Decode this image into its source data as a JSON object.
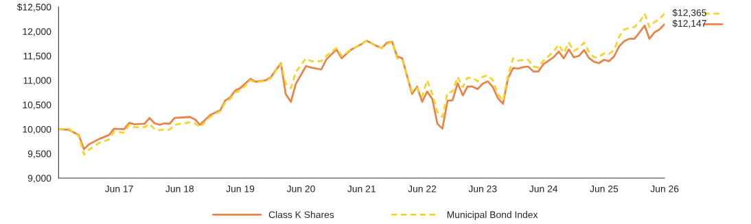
{
  "chart_data": {
    "type": "line",
    "x": [
      "2016-06",
      "2016-08",
      "2016-10",
      "2016-11",
      "2016-12",
      "2017-02",
      "2017-04",
      "2017-05",
      "2017-07",
      "2017-08",
      "2017-09",
      "2017-11",
      "2017-12",
      "2018-01",
      "2018-02",
      "2018-03",
      "2018-04",
      "2018-05",
      "2018-08",
      "2018-09",
      "2018-10",
      "2018-12",
      "2019-02",
      "2019-03",
      "2019-04",
      "2019-05",
      "2019-06",
      "2019-08",
      "2019-09",
      "2019-11",
      "2019-12",
      "2020-02",
      "2020-03",
      "2020-04",
      "2020-05",
      "2020-07",
      "2020-08",
      "2020-10",
      "2020-11",
      "2021-01",
      "2021-02",
      "2021-03",
      "2021-04",
      "2021-06",
      "2021-07",
      "2021-09",
      "2021-10",
      "2021-11",
      "2021-12",
      "2022-01",
      "2022-02",
      "2022-04",
      "2022-05",
      "2022-06",
      "2022-07",
      "2022-08",
      "2022-09",
      "2022-10",
      "2022-11",
      "2022-12",
      "2023-01",
      "2023-02",
      "2023-03",
      "2023-04",
      "2023-05",
      "2023-06",
      "2023-07",
      "2023-08",
      "2023-09",
      "2023-10",
      "2023-11",
      "2023-12",
      "2024-01",
      "2024-02",
      "2024-03",
      "2024-04",
      "2024-05",
      "2024-06",
      "2024-08",
      "2024-09",
      "2024-10",
      "2024-11",
      "2024-12",
      "2025-01",
      "2025-02",
      "2025-03",
      "2025-04",
      "2025-05",
      "2025-06",
      "2025-07",
      "2025-08",
      "2025-09",
      "2025-10",
      "2025-11",
      "2025-12",
      "2026-01",
      "2026-02",
      "2026-03",
      "2026-04",
      "2026-05",
      "2026-06"
    ],
    "series": [
      {
        "name": "Class K Shares",
        "color": "#e8834a",
        "line_style": "solid",
        "values": [
          10000,
          9990,
          9880,
          9590,
          9690,
          9800,
          9880,
          10010,
          10000,
          10130,
          10100,
          10110,
          10230,
          10120,
          10090,
          10120,
          10110,
          10230,
          10250,
          10200,
          10090,
          10290,
          10390,
          10580,
          10650,
          10790,
          10840,
          11030,
          10970,
          11000,
          11060,
          11350,
          10720,
          10560,
          10930,
          11290,
          11260,
          11220,
          11430,
          11630,
          11450,
          11540,
          11630,
          11740,
          11810,
          11700,
          11660,
          11770,
          11790,
          11490,
          11450,
          10720,
          10870,
          10560,
          10770,
          10620,
          10110,
          10010,
          10580,
          10590,
          10940,
          10690,
          10870,
          10870,
          10820,
          10930,
          10980,
          10860,
          10630,
          10520,
          11050,
          11250,
          11240,
          11270,
          11280,
          11180,
          11180,
          11330,
          11470,
          11590,
          11450,
          11630,
          11470,
          11500,
          11620,
          11460,
          11380,
          11350,
          11420,
          11390,
          11490,
          11700,
          11800,
          11850,
          11850,
          11980,
          12120,
          11850,
          11980,
          12040,
          12147
        ]
      },
      {
        "name": "Municipal Bond Index",
        "color": "#f5d327",
        "line_style": "dashed",
        "values": [
          10000,
          10010,
          9860,
          9480,
          9580,
          9720,
          9790,
          9950,
          9930,
          10090,
          10040,
          10040,
          10110,
          10000,
          9980,
          10000,
          9990,
          10090,
          10140,
          10120,
          10040,
          10250,
          10370,
          10540,
          10620,
          10750,
          10790,
          11000,
          10960,
          10990,
          11040,
          11340,
          10930,
          10840,
          11170,
          11450,
          11390,
          11390,
          11500,
          11660,
          11500,
          11560,
          11640,
          11740,
          11810,
          11690,
          11660,
          11740,
          11790,
          11450,
          11420,
          10770,
          10840,
          10670,
          11000,
          10720,
          10350,
          10250,
          10750,
          10770,
          11070,
          10860,
          11050,
          11050,
          10980,
          11070,
          11100,
          11000,
          10720,
          10580,
          11100,
          11450,
          11400,
          11420,
          11420,
          11280,
          11260,
          11400,
          11590,
          11730,
          11560,
          11770,
          11600,
          11660,
          11770,
          11590,
          11470,
          11470,
          11550,
          11540,
          11620,
          11900,
          12040,
          12070,
          12090,
          12190,
          12360,
          12090,
          12190,
          12250,
          12365
        ]
      }
    ],
    "xlim": [
      "2016-06",
      "2026-06"
    ],
    "xticks": [
      {
        "value": "2017-06",
        "label": "Jun 17"
      },
      {
        "value": "2018-06",
        "label": "Jun 18"
      },
      {
        "value": "2019-06",
        "label": "Jun 19"
      },
      {
        "value": "2020-06",
        "label": "Jun 20"
      },
      {
        "value": "2021-06",
        "label": "Jun 21"
      },
      {
        "value": "2022-06",
        "label": "Jun 22"
      },
      {
        "value": "2023-06",
        "label": "Jun 23"
      },
      {
        "value": "2024-06",
        "label": "Jun 24"
      },
      {
        "value": "2025-06",
        "label": "Jun 25"
      },
      {
        "value": "2026-06",
        "label": "Jun 26"
      }
    ],
    "ylim": [
      9000,
      12500
    ],
    "yticks": [
      {
        "value": 9000,
        "label": "9,000"
      },
      {
        "value": 9500,
        "label": "9,500"
      },
      {
        "value": 10000,
        "label": "10,000"
      },
      {
        "value": 10500,
        "label": "10,500"
      },
      {
        "value": 11000,
        "label": "11,000"
      },
      {
        "value": 11500,
        "label": "11,500"
      },
      {
        "value": 12000,
        "label": "12,000"
      },
      {
        "value": 12500,
        "label": "$12,500"
      }
    ],
    "annotations": [
      {
        "text": "$12,365",
        "x": "2026-06",
        "y": 12365
      },
      {
        "text": "$12,147",
        "x": "2026-06",
        "y": 12147
      }
    ],
    "grid": false,
    "legend": "bottom",
    "marker": "none"
  }
}
